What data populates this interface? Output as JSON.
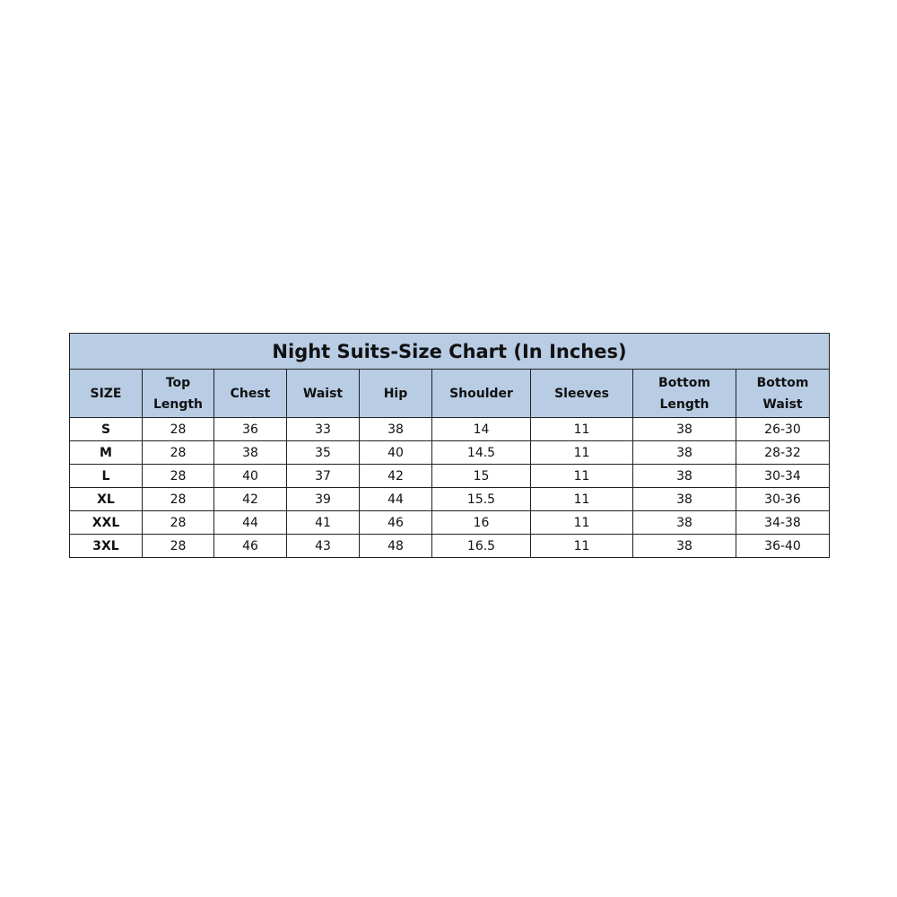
{
  "title": "Night Suits-Size Chart (In Inches)",
  "headers": [
    "SIZE",
    "Top\nLength",
    "Chest",
    "Waist",
    "Hip",
    "Shoulder",
    "Sleeves",
    "Bottom\nLength",
    "Bottom\nWaist"
  ],
  "header_bg": "#b8cce4",
  "rows": [
    [
      "S",
      "28",
      "36",
      "33",
      "38",
      "14",
      "11",
      "38",
      "26-30"
    ],
    [
      "M",
      "28",
      "38",
      "35",
      "40",
      "14.5",
      "11",
      "38",
      "28-32"
    ],
    [
      "L",
      "28",
      "40",
      "37",
      "42",
      "15",
      "11",
      "38",
      "30-34"
    ],
    [
      "XL",
      "28",
      "42",
      "39",
      "44",
      "15.5",
      "11",
      "38",
      "30-36"
    ],
    [
      "XXL",
      "28",
      "44",
      "41",
      "46",
      "16",
      "11",
      "38",
      "34-38"
    ],
    [
      "3XL",
      "28",
      "46",
      "43",
      "48",
      "16.5",
      "11",
      "38",
      "36-40"
    ]
  ]
}
